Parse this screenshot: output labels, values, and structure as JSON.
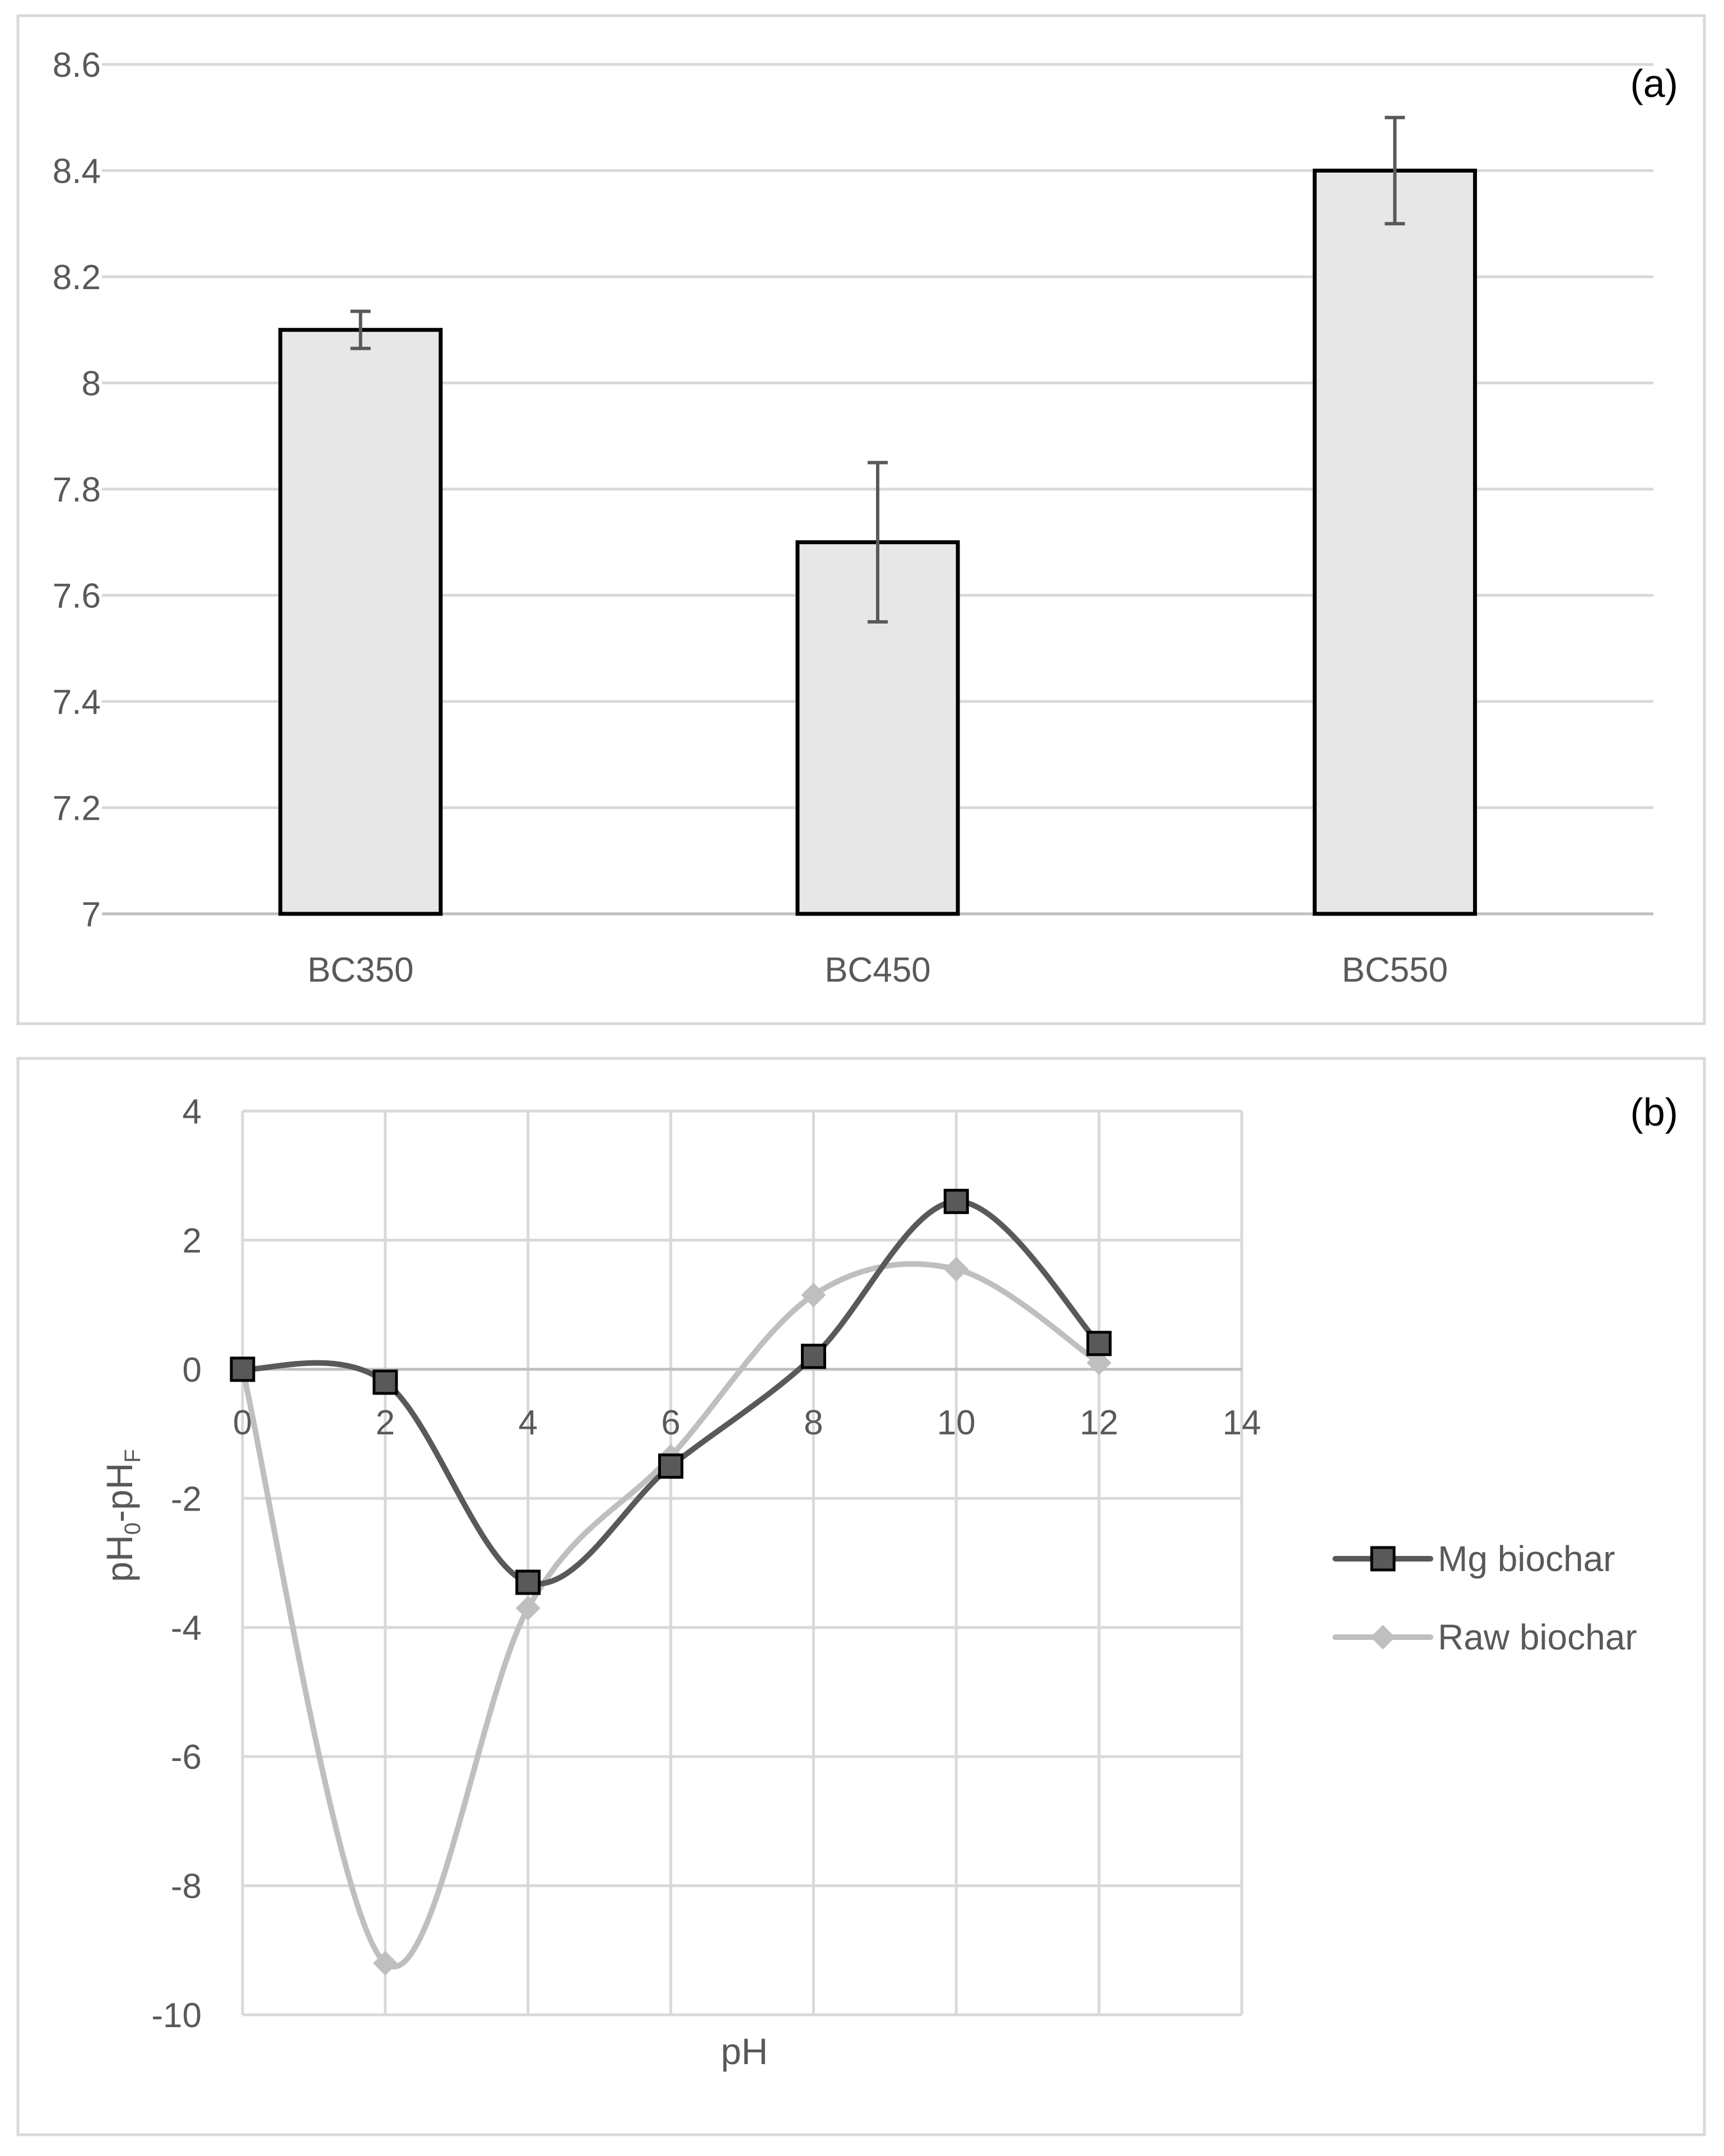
{
  "chart_data": [
    {
      "type": "bar",
      "panel_label": "(a)",
      "categories": [
        "BC350",
        "BC450",
        "BC550"
      ],
      "values": [
        8.1,
        7.7,
        8.4
      ],
      "errors": [
        0.035,
        0.15,
        0.1
      ],
      "colors": {
        "bar_fill": "#e7e7e7",
        "bar_stroke": "#000000",
        "error": "#595959"
      },
      "ylim": [
        7,
        8.6
      ],
      "yticks": [
        7,
        7.2,
        7.4,
        7.6,
        7.8,
        8,
        8.2,
        8.4,
        8.6
      ],
      "ytick_labels": [
        "7",
        "7.2",
        "7.4",
        "7.6",
        "7.8",
        "8",
        "8.2",
        "8.4",
        "8.6"
      ],
      "grid": true
    },
    {
      "type": "line",
      "panel_label": "(b)",
      "xlabel": "pH",
      "ylabel": {
        "base": "pH",
        "sub0": "0",
        "mid": "-pH",
        "sub1": "F"
      },
      "xlim": [
        0,
        14
      ],
      "ylim": [
        -10,
        4
      ],
      "xticks": [
        0,
        2,
        4,
        6,
        8,
        10,
        12,
        14
      ],
      "xtick_labels": [
        "0",
        "2",
        "4",
        "6",
        "8",
        "10",
        "12",
        "14"
      ],
      "yticks": [
        -10,
        -8,
        -6,
        -4,
        -2,
        0,
        2,
        4
      ],
      "ytick_labels": [
        "-10",
        "-8",
        "-6",
        "-4",
        "-2",
        "0",
        "2",
        "4"
      ],
      "grid": true,
      "legend_position": "right",
      "series": [
        {
          "name": "Mg biochar",
          "marker": "square",
          "color": "#595959",
          "x": [
            0,
            2,
            4,
            6,
            8,
            10,
            12
          ],
          "y": [
            0,
            -0.2,
            -3.3,
            -1.5,
            0.2,
            2.6,
            0.4
          ]
        },
        {
          "name": "Raw biochar",
          "marker": "diamond",
          "color": "#bfbfbf",
          "x": [
            0,
            2,
            4,
            6,
            8,
            10,
            12
          ],
          "y": [
            0,
            -9.2,
            -3.7,
            -1.35,
            1.15,
            1.55,
            0.1
          ]
        }
      ]
    }
  ]
}
